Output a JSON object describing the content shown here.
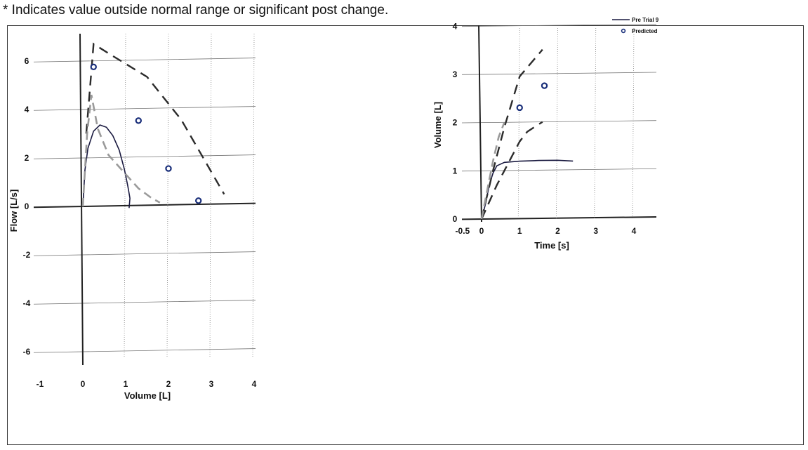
{
  "header_note": "* Indicates value outside normal range or significant post change.",
  "legend": {
    "measured": "Pre Trial 9",
    "predicted": "Predicted"
  },
  "colors": {
    "measured": "#1a1a40",
    "predicted_outline": "#1a2f7a",
    "dark_dash": "#2b2b2b",
    "light_dash": "#9a9a9a"
  },
  "chart_data": [
    {
      "type": "line",
      "title": "",
      "xlabel": "Volume [L]",
      "ylabel": "Flow [L/s]",
      "xlim": [
        -1,
        4
      ],
      "ylim": [
        -6,
        6
      ],
      "x_ticks": [
        "-1",
        "0",
        "1",
        "2",
        "3",
        "4"
      ],
      "y_ticks": [
        "6",
        "4",
        "2",
        "0",
        "-2",
        "-4",
        "-6"
      ],
      "grid": true,
      "series": [
        {
          "name": "Pre Trial 9",
          "style": "solid",
          "points": [
            [
              0,
              0
            ],
            [
              0.05,
              1.5
            ],
            [
              0.12,
              2.4
            ],
            [
              0.25,
              3.1
            ],
            [
              0.4,
              3.35
            ],
            [
              0.55,
              3.25
            ],
            [
              0.7,
              2.9
            ],
            [
              0.85,
              2.3
            ],
            [
              0.97,
              1.5
            ],
            [
              1.05,
              0.8
            ],
            [
              1.1,
              0.3
            ],
            [
              1.08,
              -0.1
            ]
          ]
        },
        {
          "style": "dark-dash",
          "points": [
            [
              0.08,
              3.0
            ],
            [
              0.25,
              6.7
            ],
            [
              0.6,
              6.3
            ],
            [
              1.5,
              5.3
            ],
            [
              2.3,
              3.5
            ],
            [
              3.3,
              0.4
            ]
          ]
        },
        {
          "style": "light-dash",
          "points": [
            [
              0,
              0
            ],
            [
              0.1,
              3.0
            ],
            [
              0.2,
              4.6
            ],
            [
              0.35,
              3.2
            ],
            [
              0.6,
              2.1
            ],
            [
              1.0,
              1.3
            ],
            [
              1.3,
              0.7
            ],
            [
              1.6,
              0.3
            ],
            [
              1.8,
              0.1
            ]
          ]
        },
        {
          "name": "Predicted",
          "style": "markers",
          "points": [
            [
              0.25,
              5.75
            ],
            [
              1.3,
              3.5
            ],
            [
              2.0,
              1.5
            ],
            [
              2.7,
              0.15
            ]
          ]
        }
      ]
    },
    {
      "type": "line",
      "title": "",
      "xlabel": "Time [s]",
      "ylabel": "Volume [L]",
      "xlim": [
        -0.5,
        4
      ],
      "ylim": [
        0,
        4
      ],
      "x_ticks": [
        "-0.5",
        "0",
        "1",
        "2",
        "3",
        "4"
      ],
      "y_ticks": [
        "4",
        "3",
        "2",
        "1",
        "0"
      ],
      "grid": true,
      "series": [
        {
          "name": "Pre Trial 9",
          "style": "solid",
          "points": [
            [
              0,
              0
            ],
            [
              0.1,
              0.3
            ],
            [
              0.2,
              0.7
            ],
            [
              0.3,
              0.95
            ],
            [
              0.4,
              1.1
            ],
            [
              0.6,
              1.17
            ],
            [
              1.0,
              1.19
            ],
            [
              1.5,
              1.2
            ],
            [
              2.0,
              1.2
            ],
            [
              2.4,
              1.18
            ]
          ]
        },
        {
          "style": "dark-dash",
          "points": [
            [
              0,
              0
            ],
            [
              0.3,
              1.0
            ],
            [
              0.6,
              1.9
            ],
            [
              1.0,
              2.95
            ],
            [
              1.6,
              3.5
            ]
          ]
        },
        {
          "style": "dark-dash",
          "points": [
            [
              0,
              0
            ],
            [
              0.4,
              0.7
            ],
            [
              1.0,
              1.6
            ],
            [
              1.2,
              1.8
            ],
            [
              1.6,
              2.0
            ]
          ]
        },
        {
          "style": "light-dash",
          "points": [
            [
              0,
              0
            ],
            [
              0.15,
              0.6
            ],
            [
              0.3,
              1.2
            ],
            [
              0.45,
              1.7
            ],
            [
              0.6,
              2.0
            ]
          ]
        },
        {
          "name": "Predicted",
          "style": "markers",
          "points": [
            [
              1.0,
              2.3
            ],
            [
              1.65,
              2.75
            ]
          ]
        }
      ]
    }
  ]
}
